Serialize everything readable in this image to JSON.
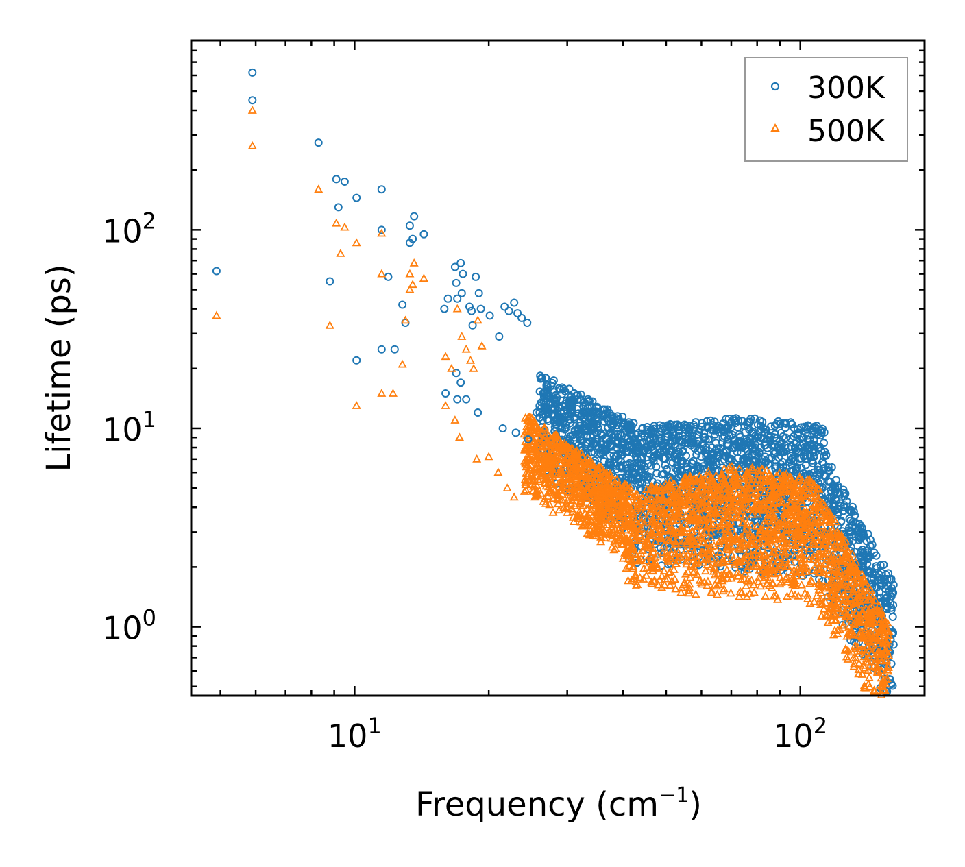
{
  "chart_data": {
    "type": "scatter",
    "xscale": "log",
    "yscale": "log",
    "xlim": [
      4.3,
      190
    ],
    "ylim": [
      0.45,
      900
    ],
    "xlabel": "Frequency (cm",
    "xlabel_sup": "−1",
    "xlabel_close": ")",
    "ylabel": "Lifetime (ps)",
    "x_ticks": [
      {
        "value": 10,
        "base": "10",
        "exp": "1"
      },
      {
        "value": 100,
        "base": "10",
        "exp": "2"
      }
    ],
    "y_ticks": [
      {
        "value": 1,
        "base": "10",
        "exp": "0"
      },
      {
        "value": 10,
        "base": "10",
        "exp": "1"
      },
      {
        "value": 100,
        "base": "10",
        "exp": "2"
      }
    ],
    "legend": {
      "position": "top-right"
    },
    "series": [
      {
        "name": "300K",
        "marker": "circle",
        "color": "#1f77b4",
        "points": [
          [
            4.9,
            62
          ],
          [
            5.9,
            620
          ],
          [
            5.9,
            450
          ],
          [
            8.3,
            275
          ],
          [
            9.1,
            180
          ],
          [
            9.2,
            130
          ],
          [
            9.5,
            175
          ],
          [
            8.8,
            55
          ],
          [
            10.1,
            145
          ],
          [
            10.1,
            22
          ],
          [
            11.5,
            160
          ],
          [
            11.5,
            100
          ],
          [
            11.9,
            58
          ],
          [
            11.5,
            25
          ],
          [
            12.3,
            25
          ],
          [
            12.8,
            42
          ],
          [
            13.0,
            34
          ],
          [
            13.3,
            86
          ],
          [
            13.3,
            105
          ],
          [
            13.5,
            90
          ],
          [
            13.6,
            117
          ],
          [
            14.3,
            95
          ],
          [
            15.9,
            40
          ],
          [
            16.2,
            45
          ],
          [
            16.8,
            65
          ],
          [
            16.9,
            54
          ],
          [
            17.0,
            45
          ],
          [
            17.3,
            68
          ],
          [
            17.4,
            48
          ],
          [
            17.5,
            60
          ],
          [
            18.1,
            41
          ],
          [
            18.3,
            39
          ],
          [
            18.4,
            33
          ],
          [
            18.7,
            58
          ],
          [
            19.0,
            48
          ],
          [
            19.2,
            40
          ],
          [
            20.1,
            37
          ],
          [
            21.1,
            29
          ],
          [
            21.7,
            41
          ],
          [
            22.2,
            39
          ],
          [
            22.8,
            43
          ],
          [
            23.2,
            38
          ],
          [
            23.7,
            36
          ],
          [
            24.4,
            34
          ],
          [
            17.0,
            14
          ],
          [
            16.0,
            15
          ],
          [
            17.8,
            14
          ],
          [
            18.9,
            12
          ],
          [
            16.9,
            19
          ],
          [
            17.3,
            17
          ],
          [
            21.5,
            10
          ],
          [
            23.0,
            9.5
          ],
          [
            24.5,
            8.8
          ],
          [
            25.6,
            12
          ]
        ]
      },
      {
        "name": "500K",
        "marker": "triangle",
        "color": "#ff7f0e",
        "points": [
          [
            4.9,
            37
          ],
          [
            5.9,
            400
          ],
          [
            5.9,
            265
          ],
          [
            8.3,
            160
          ],
          [
            9.1,
            108
          ],
          [
            9.5,
            103
          ],
          [
            9.3,
            76
          ],
          [
            8.8,
            33
          ],
          [
            10.1,
            86
          ],
          [
            10.1,
            13
          ],
          [
            11.5,
            96
          ],
          [
            11.5,
            60
          ],
          [
            11.5,
            15
          ],
          [
            12.2,
            15
          ],
          [
            12.8,
            21
          ],
          [
            13.0,
            35
          ],
          [
            13.3,
            60
          ],
          [
            13.3,
            50
          ],
          [
            13.6,
            68
          ],
          [
            13.5,
            53
          ],
          [
            14.3,
            57
          ],
          [
            16.0,
            23
          ],
          [
            16.5,
            20
          ],
          [
            17.0,
            40
          ],
          [
            17.4,
            29
          ],
          [
            17.8,
            25
          ],
          [
            18.2,
            22
          ],
          [
            18.5,
            20
          ],
          [
            18.9,
            35
          ],
          [
            19.3,
            26
          ],
          [
            16.0,
            13
          ],
          [
            16.8,
            11
          ],
          [
            17.2,
            9
          ],
          [
            18.8,
            7
          ],
          [
            20.0,
            7.2
          ],
          [
            21.0,
            6
          ],
          [
            22.0,
            5
          ],
          [
            22.8,
            4.5
          ],
          [
            24.2,
            5.2
          ],
          [
            25.4,
            4.5
          ]
        ]
      }
    ]
  }
}
